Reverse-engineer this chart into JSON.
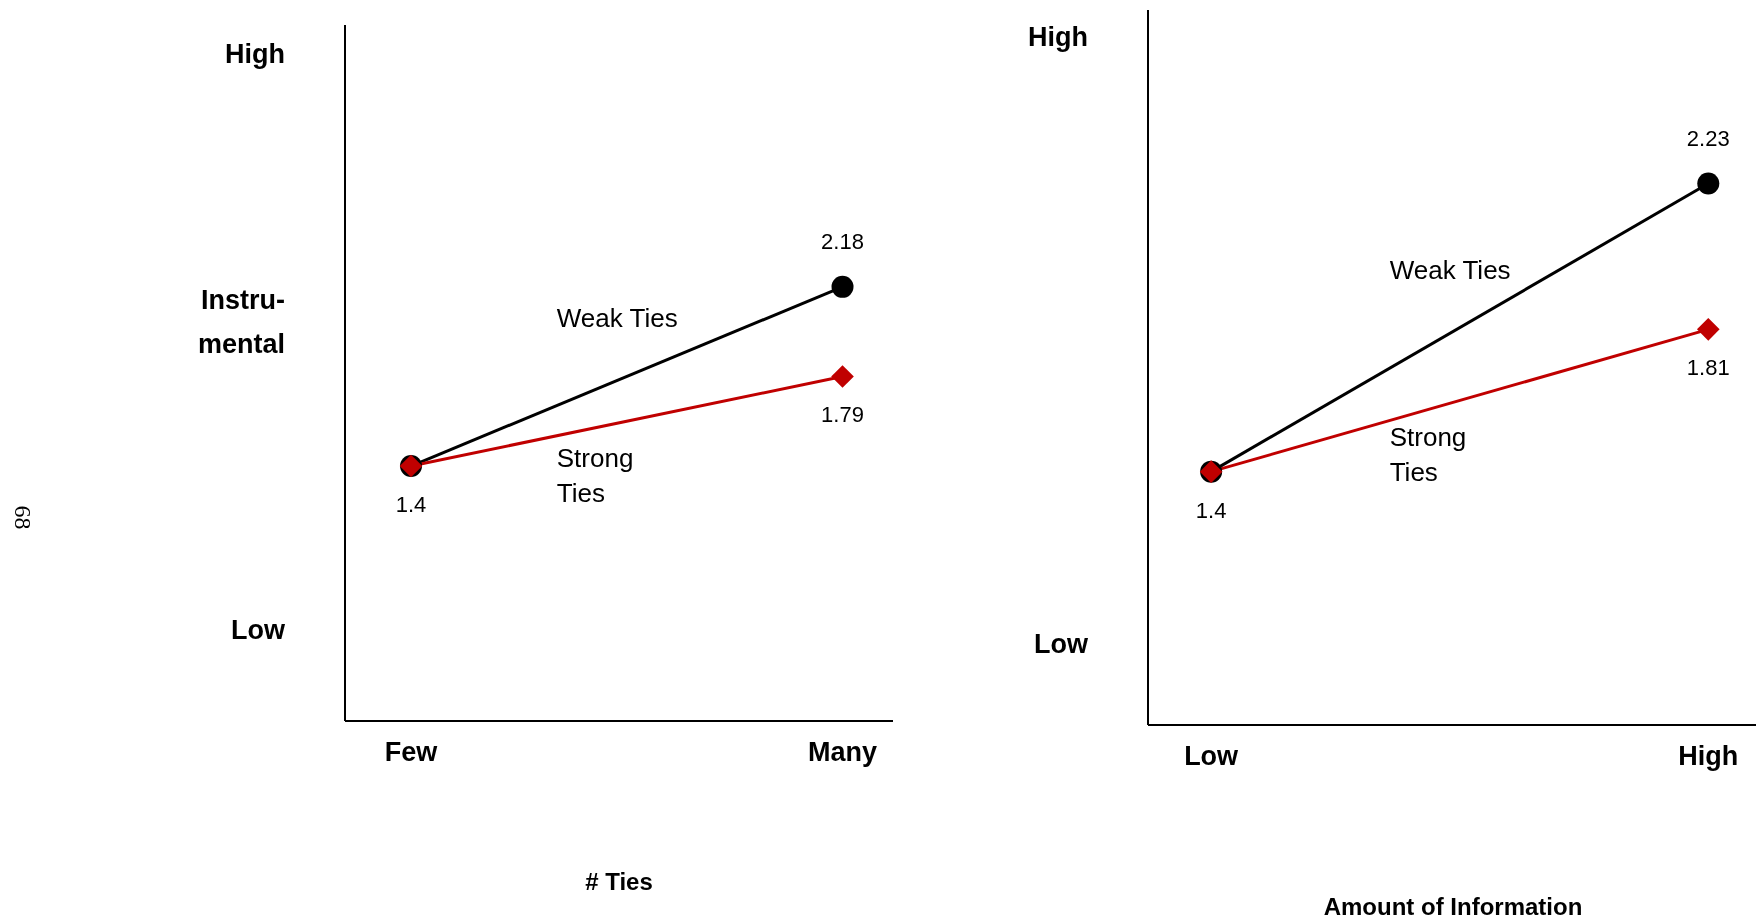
{
  "chart_data": [
    {
      "type": "line",
      "categories": [
        "Few",
        "Many"
      ],
      "xlabel": "# Ties",
      "ylim": [
        0.29,
        3.32
      ],
      "legend": false,
      "grid": false,
      "annotations": [
        "68",
        "Low",
        "Instru-mental",
        "High"
      ],
      "series": [
        {
          "name": "Weak Ties",
          "color": "#000000",
          "marker": "circle",
          "values": [
            1.4,
            2.18
          ],
          "value_labels": [
            "1.4",
            "2.18"
          ]
        },
        {
          "name": "Strong Ties",
          "color": "#c00000",
          "marker": "diamond",
          "values": [
            1.4,
            1.79
          ],
          "value_labels": [
            null,
            "1.79"
          ]
        }
      ]
    },
    {
      "type": "line",
      "categories": [
        "Low",
        "High"
      ],
      "xlabel": "Amount of Information",
      "ylim": [
        0.67,
        2.73
      ],
      "legend": false,
      "grid": false,
      "annotations": [
        "Low",
        "High"
      ],
      "series": [
        {
          "name": "Weak Ties",
          "color": "#000000",
          "marker": "circle",
          "values": [
            1.4,
            2.23
          ],
          "value_labels": [
            "1.4",
            "2.23"
          ]
        },
        {
          "name": "Strong Ties",
          "color": "#c00000",
          "marker": "diamond",
          "values": [
            1.4,
            1.81
          ],
          "value_labels": [
            null,
            "1.81"
          ]
        }
      ]
    }
  ]
}
